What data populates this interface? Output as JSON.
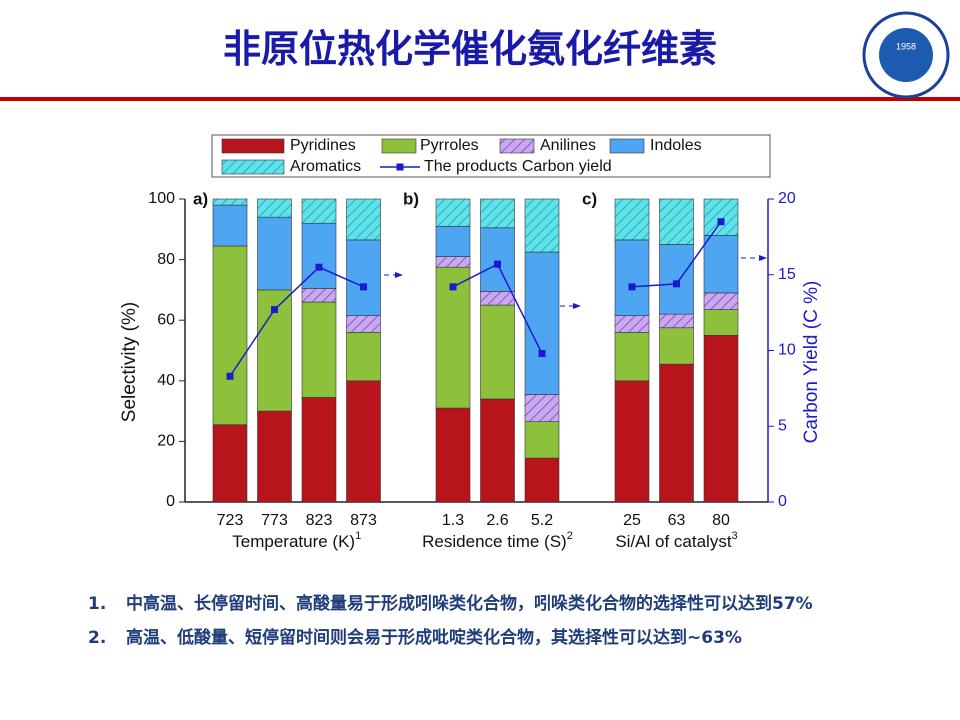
{
  "title": "非原位热化学催化氨化纤维素",
  "logo": {
    "year": "1958"
  },
  "chart_data": [
    {
      "type": "bar",
      "stacked": true,
      "panel": "a)",
      "xlabel": "Temperature (K)",
      "xlabel_note": "1",
      "ylabel": "Selectivity (%)",
      "categories": [
        "723",
        "773",
        "823",
        "873"
      ],
      "ylim": [
        0,
        100
      ],
      "yticks": [
        0,
        20,
        40,
        60,
        80,
        100
      ],
      "y2lim": [
        0,
        20
      ],
      "series": [
        {
          "name": "Pyridines",
          "color": "#b8141c",
          "values": [
            25.5,
            30,
            34.5,
            40
          ]
        },
        {
          "name": "Pyrroles",
          "color": "#8dc13c",
          "values": [
            59,
            40,
            31.5,
            16
          ]
        },
        {
          "name": "Anilines",
          "color": "#b58be6",
          "hatch": true,
          "values": [
            0,
            0,
            4.5,
            5.5
          ]
        },
        {
          "name": "Indoles",
          "color": "#4ea5f2",
          "values": [
            13.5,
            24,
            21.5,
            25
          ]
        },
        {
          "name": "Aromatics",
          "color": "#4fd6e0",
          "hatch": true,
          "values": [
            2,
            6,
            8,
            13.5
          ]
        },
        {
          "name": "The products Carbon yield",
          "type": "line",
          "axis": "y2",
          "color": "#1a1ad0",
          "values": [
            8.3,
            12.7,
            15.5,
            14.2
          ]
        }
      ]
    },
    {
      "type": "bar",
      "stacked": true,
      "panel": "b)",
      "xlabel": "Residence time (S)",
      "xlabel_note": "2",
      "categories": [
        "1.3",
        "2.6",
        "5.2"
      ],
      "ylim": [
        0,
        100
      ],
      "y2lim": [
        0,
        20
      ],
      "series": [
        {
          "color": "#b8141c",
          "values": [
            31,
            34,
            14.5
          ]
        },
        {
          "color": "#8dc13c",
          "values": [
            46.5,
            31,
            12
          ]
        },
        {
          "color": "#b58be6",
          "hatch": true,
          "values": [
            3.5,
            4.5,
            9
          ]
        },
        {
          "color": "#4ea5f2",
          "values": [
            10,
            21,
            47
          ]
        },
        {
          "color": "#4fd6e0",
          "hatch": true,
          "values": [
            9,
            9.5,
            17.5
          ]
        },
        {
          "type": "line",
          "axis": "y2",
          "color": "#1a1ad0",
          "values": [
            14.2,
            15.7,
            9.8
          ]
        }
      ]
    },
    {
      "type": "bar",
      "stacked": true,
      "panel": "c)",
      "xlabel": "Si/Al of catalyst",
      "xlabel_note": "3",
      "y2label": "Carbon Yield (C %)",
      "categories": [
        "25",
        "63",
        "80"
      ],
      "ylim": [
        0,
        100
      ],
      "y2lim": [
        0,
        20
      ],
      "y2ticks": [
        0,
        5,
        10,
        15,
        20
      ],
      "series": [
        {
          "color": "#b8141c",
          "values": [
            40,
            45.5,
            55
          ]
        },
        {
          "color": "#8dc13c",
          "values": [
            16,
            12,
            8.5
          ]
        },
        {
          "color": "#b58be6",
          "hatch": true,
          "values": [
            5.5,
            4.5,
            5.5
          ]
        },
        {
          "color": "#4ea5f2",
          "values": [
            25,
            23,
            19
          ]
        },
        {
          "color": "#4fd6e0",
          "hatch": true,
          "values": [
            13.5,
            15,
            12
          ]
        },
        {
          "type": "line",
          "axis": "y2",
          "color": "#1a1ad0",
          "values": [
            14.2,
            14.4,
            18.5
          ]
        }
      ]
    }
  ],
  "notes": [
    {
      "number": "1.",
      "text": "中高温、长停留时间、高酸量易于形成吲哚类化合物，吲哚类化合物的选择性可以达到57%"
    },
    {
      "number": "2.",
      "text": "高温、低酸量、短停留时间则会易于形成吡啶类化合物，其选择性可以达到~63%"
    }
  ]
}
